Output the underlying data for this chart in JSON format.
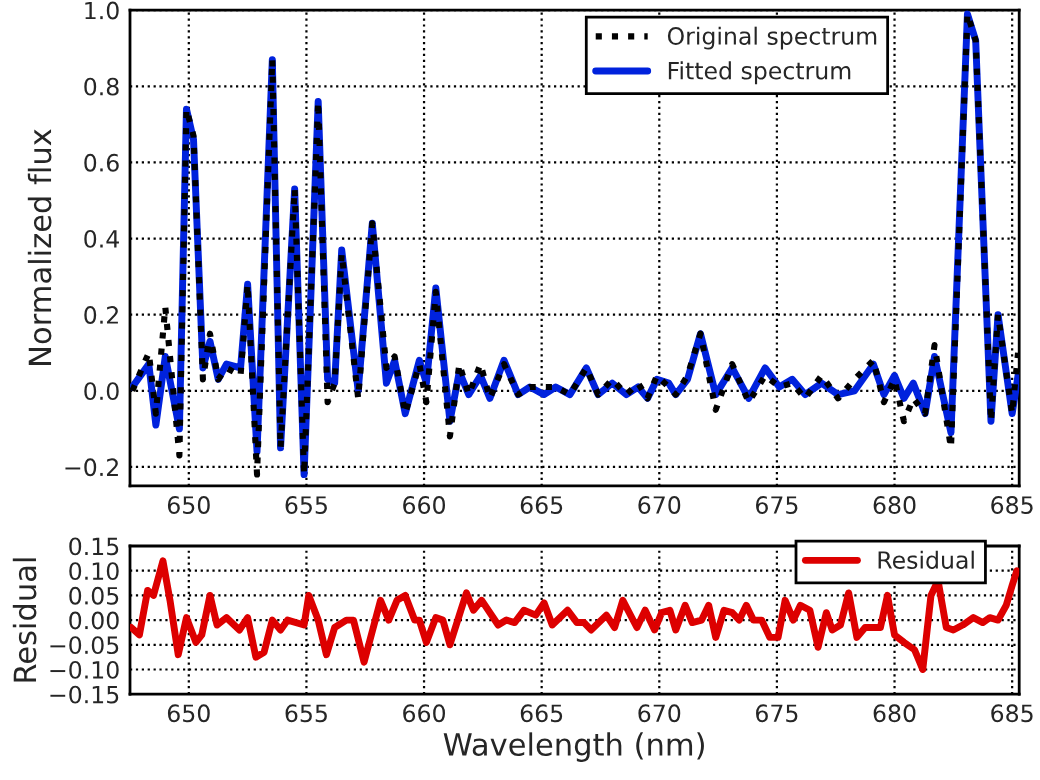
{
  "chart_data": [
    {
      "type": "line",
      "ylabel": "Normalized flux",
      "xlim": [
        647.5,
        685.3
      ],
      "ylim": [
        -0.25,
        1.0
      ],
      "xticks": [
        650,
        655,
        660,
        665,
        670,
        675,
        680,
        685
      ],
      "yticks": [
        {
          "value": -0.2,
          "label": "−0.2"
        },
        {
          "value": 0,
          "label": "0.0"
        },
        {
          "value": 0.2,
          "label": "0.2"
        },
        {
          "value": 0.4,
          "label": "0.4"
        },
        {
          "value": 0.6,
          "label": "0.6"
        },
        {
          "value": 0.8,
          "label": "0.8"
        },
        {
          "value": 1,
          "label": "1.0"
        }
      ],
      "grid": true,
      "legend": "top right",
      "series": [
        {
          "name": "Original spectrum",
          "color": "#000000",
          "line_style": "dotted",
          "x": [
            647.6,
            648.3,
            648.6,
            649.0,
            649.6,
            649.9,
            650.2,
            650.6,
            650.9,
            651.25,
            651.6,
            652.2,
            652.5,
            652.9,
            653.55,
            653.9,
            654.5,
            654.9,
            655.5,
            655.9,
            656.2,
            656.5,
            657.2,
            657.8,
            658.4,
            658.75,
            659.2,
            659.8,
            660.1,
            660.5,
            661.1,
            661.5,
            661.9,
            662.4,
            662.8,
            663.4,
            664.0,
            664.5,
            665.1,
            665.6,
            666.2,
            666.9,
            667.4,
            668.0,
            668.6,
            669.1,
            669.5,
            669.9,
            670.4,
            670.7,
            671.2,
            671.75,
            672.4,
            673.1,
            673.8,
            674.5,
            675.1,
            675.65,
            676.2,
            676.9,
            677.6,
            678.3,
            679.1,
            679.55,
            680.0,
            680.4,
            680.8,
            681.3,
            681.7,
            682.4,
            683.1,
            683.45,
            684.1,
            684.4,
            685.0,
            685.25
          ],
          "values": [
            0.0,
            0.1,
            -0.06,
            0.22,
            -0.17,
            0.74,
            0.67,
            0.03,
            0.15,
            0.03,
            0.06,
            0.04,
            0.28,
            -0.22,
            0.87,
            -0.15,
            0.53,
            -0.22,
            0.76,
            -0.03,
            0.02,
            0.36,
            -0.02,
            0.44,
            0.06,
            0.09,
            -0.06,
            0.07,
            -0.03,
            0.26,
            -0.12,
            0.07,
            -0.01,
            0.07,
            -0.02,
            0.07,
            -0.01,
            0.01,
            0.01,
            0.01,
            -0.01,
            0.06,
            -0.01,
            0.03,
            -0.01,
            0.02,
            -0.02,
            0.04,
            0.01,
            -0.01,
            0.04,
            0.15,
            -0.05,
            0.07,
            -0.03,
            0.04,
            0.01,
            0.02,
            -0.02,
            0.04,
            -0.02,
            0.03,
            0.08,
            -0.03,
            0.03,
            -0.08,
            -0.02,
            -0.06,
            0.12,
            -0.15,
            0.99,
            0.92,
            -0.08,
            0.2,
            -0.06,
            0.1
          ]
        },
        {
          "name": "Fitted spectrum",
          "color": "#0022dd",
          "line_style": "solid",
          "x": [
            647.6,
            648.3,
            648.6,
            649.0,
            649.6,
            649.9,
            650.2,
            650.6,
            650.9,
            651.25,
            651.6,
            652.2,
            652.5,
            652.9,
            653.55,
            653.9,
            654.5,
            654.9,
            655.5,
            655.9,
            656.2,
            656.5,
            657.2,
            657.8,
            658.4,
            658.75,
            659.2,
            659.8,
            660.1,
            660.5,
            661.1,
            661.5,
            661.9,
            662.4,
            662.8,
            663.4,
            664.0,
            664.5,
            665.1,
            665.6,
            666.2,
            666.9,
            667.4,
            668.0,
            668.6,
            669.1,
            669.5,
            669.9,
            670.4,
            670.7,
            671.2,
            671.75,
            672.4,
            673.1,
            673.8,
            674.5,
            675.1,
            675.65,
            676.2,
            676.9,
            677.6,
            678.3,
            679.1,
            679.55,
            680.0,
            680.4,
            680.8,
            681.3,
            681.7,
            682.4,
            683.1,
            683.45,
            684.1,
            684.4,
            685.0,
            685.25
          ],
          "values": [
            0.01,
            0.07,
            -0.09,
            0.09,
            -0.1,
            0.74,
            0.66,
            0.06,
            0.13,
            0.03,
            0.07,
            0.06,
            0.28,
            -0.16,
            0.87,
            -0.15,
            0.53,
            -0.22,
            0.76,
            0.03,
            0.02,
            0.37,
            0.0,
            0.44,
            0.02,
            0.08,
            -0.06,
            0.08,
            0.02,
            0.27,
            -0.08,
            0.05,
            -0.01,
            0.04,
            -0.02,
            0.08,
            -0.01,
            0.01,
            -0.01,
            0.01,
            -0.01,
            0.06,
            -0.01,
            0.02,
            -0.01,
            0.01,
            -0.02,
            0.03,
            0.02,
            -0.01,
            0.03,
            0.15,
            -0.01,
            0.06,
            -0.02,
            0.06,
            0.01,
            0.03,
            -0.01,
            0.02,
            -0.01,
            0.0,
            0.07,
            -0.01,
            0.04,
            -0.02,
            0.02,
            -0.06,
            0.09,
            -0.11,
            0.99,
            0.92,
            -0.08,
            0.2,
            -0.06,
            0.04
          ]
        }
      ]
    },
    {
      "type": "line",
      "xlabel": "Wavelength (nm)",
      "ylabel": "Residual",
      "xlim": [
        647.5,
        685.3
      ],
      "ylim": [
        -0.15,
        0.15
      ],
      "xticks": [
        650,
        655,
        660,
        665,
        670,
        675,
        680,
        685
      ],
      "yticks": [
        {
          "value": -0.15,
          "label": "−0.15"
        },
        {
          "value": -0.1,
          "label": "−0.10"
        },
        {
          "value": -0.05,
          "label": "−0.05"
        },
        {
          "value": 0,
          "label": "0.00"
        },
        {
          "value": 0.05,
          "label": "0.05"
        },
        {
          "value": 0.1,
          "label": "0.10"
        },
        {
          "value": 0.15,
          "label": "0.15"
        }
      ],
      "grid": true,
      "legend": "top right",
      "series": [
        {
          "name": "Residual",
          "color": "#dd0000",
          "line_style": "solid",
          "x": [
            647.55,
            647.9,
            648.25,
            648.5,
            648.9,
            649.2,
            649.55,
            649.9,
            650.3,
            650.55,
            650.9,
            651.2,
            651.6,
            652.15,
            652.5,
            652.85,
            653.2,
            653.55,
            653.9,
            654.2,
            654.9,
            655.1,
            655.5,
            655.85,
            656.2,
            656.7,
            657.0,
            657.45,
            658.15,
            658.5,
            658.85,
            659.2,
            659.6,
            659.8,
            660.1,
            660.5,
            660.8,
            661.1,
            661.5,
            661.8,
            662.1,
            662.45,
            663.15,
            663.5,
            663.85,
            664.25,
            664.75,
            665.1,
            665.45,
            666.1,
            666.5,
            666.8,
            667.1,
            667.75,
            668.1,
            668.45,
            669.05,
            669.4,
            669.8,
            670.1,
            670.45,
            670.7,
            671.1,
            671.4,
            671.8,
            672.1,
            672.4,
            672.75,
            673.1,
            673.4,
            673.7,
            674.0,
            674.35,
            674.7,
            675.05,
            675.35,
            675.7,
            676.0,
            676.4,
            676.75,
            677.1,
            677.35,
            677.7,
            678.05,
            678.4,
            678.75,
            679.4,
            679.7,
            680.0,
            680.4,
            680.85,
            681.2,
            681.55,
            681.85,
            682.2,
            682.5,
            682.9,
            683.35,
            683.75,
            684.05,
            684.4,
            684.75,
            685.0,
            685.2
          ],
          "values": [
            -0.015,
            -0.03,
            0.06,
            0.05,
            0.12,
            0.04,
            -0.07,
            0.005,
            -0.045,
            -0.03,
            0.05,
            -0.01,
            0.005,
            -0.02,
            0.005,
            -0.075,
            -0.065,
            0.0,
            -0.02,
            0.0,
            -0.01,
            0.05,
            0.0,
            -0.07,
            -0.015,
            0.0,
            0.0,
            -0.085,
            0.04,
            0.0,
            0.04,
            0.05,
            0.0,
            0.0,
            -0.045,
            0.005,
            0.0,
            -0.05,
            0.01,
            0.055,
            0.02,
            0.04,
            -0.01,
            0.0,
            -0.005,
            0.02,
            0.01,
            0.035,
            -0.01,
            0.02,
            -0.005,
            -0.005,
            -0.02,
            0.01,
            -0.015,
            0.04,
            -0.015,
            0.02,
            -0.02,
            0.015,
            0.02,
            -0.02,
            0.03,
            -0.005,
            0.0,
            0.03,
            -0.035,
            0.02,
            0.015,
            0.0,
            0.03,
            0.0,
            0.0,
            -0.035,
            -0.035,
            0.04,
            0.0,
            0.03,
            0.02,
            -0.055,
            0.015,
            -0.02,
            -0.01,
            0.055,
            -0.035,
            -0.015,
            -0.015,
            0.05,
            -0.03,
            -0.045,
            -0.06,
            -0.1,
            0.05,
            0.08,
            -0.015,
            -0.02,
            -0.01,
            0.005,
            -0.005,
            0.005,
            0.0,
            0.03,
            0.07,
            0.1
          ]
        }
      ]
    }
  ]
}
